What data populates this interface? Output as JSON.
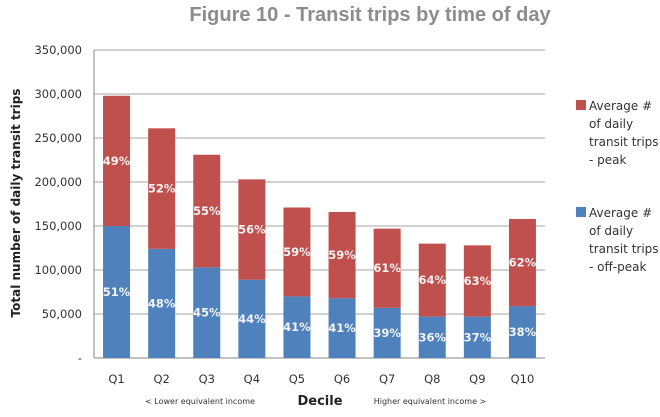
{
  "chart_data": {
    "type": "bar",
    "stacked": true,
    "title": "Figure 10 - Transit trips by time of day",
    "xlabel": "Decile",
    "ylabel": "Total number of daily transit trips",
    "x_notes": {
      "left": "< Lower equivalent income",
      "right": "Higher equivalent income >"
    },
    "ylim": [
      0,
      350000
    ],
    "yticks": [
      0,
      50000,
      100000,
      150000,
      200000,
      250000,
      300000,
      350000
    ],
    "ytick_labels": [
      "-",
      "50,000",
      "100,000",
      "150,000",
      "200,000",
      "250,000",
      "300,000",
      "350,000"
    ],
    "grid": true,
    "legend_position": "right",
    "categories": [
      "Q1",
      "Q2",
      "Q3",
      "Q4",
      "Q5",
      "Q6",
      "Q7",
      "Q8",
      "Q9",
      "Q10"
    ],
    "series": [
      {
        "name": "Average # of daily transit trips - off-peak",
        "legend_lines": [
          "Average  #",
          "of daily",
          "transit trips",
          "- off-peak"
        ],
        "color": "#4f81bd",
        "values": [
          150000,
          124000,
          103000,
          89000,
          70000,
          68000,
          57000,
          47000,
          47000,
          59000
        ],
        "labels": [
          "51%",
          "48%",
          "45%",
          "44%",
          "41%",
          "41%",
          "39%",
          "36%",
          "37%",
          "38%"
        ]
      },
      {
        "name": "Average # of daily transit trips - peak",
        "legend_lines": [
          "Average  #",
          "of daily",
          "transit trips",
          "- peak"
        ],
        "color": "#c0504d",
        "values": [
          148000,
          137000,
          128000,
          114000,
          101000,
          98000,
          90000,
          83000,
          81000,
          99000
        ],
        "labels": [
          "49%",
          "52%",
          "55%",
          "56%",
          "59%",
          "59%",
          "61%",
          "64%",
          "63%",
          "62%"
        ]
      }
    ]
  }
}
